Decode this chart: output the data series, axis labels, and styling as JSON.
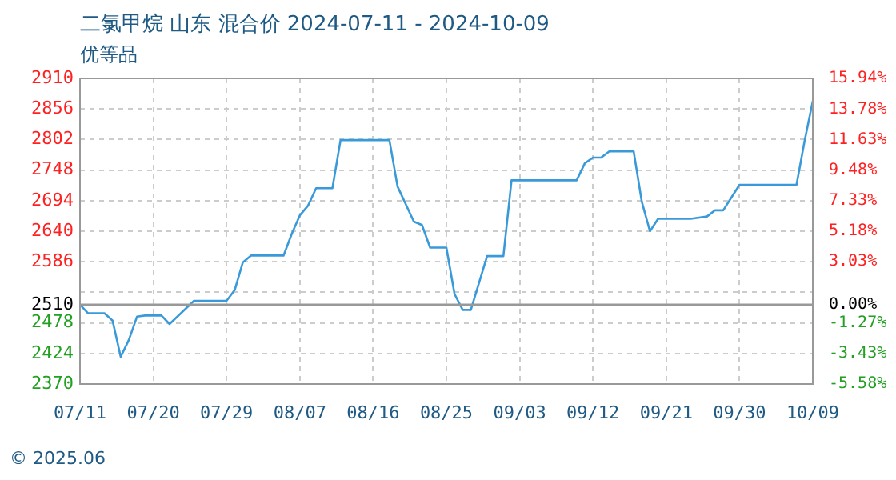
{
  "chart_data": {
    "type": "line",
    "title": "二氯甲烷 山东 混合价 2024-07-11 - 2024-10-09",
    "subtitle": "优等品",
    "annotations": [
      "© 2025.06"
    ],
    "x": [
      "2024-07-11",
      "2024-07-12",
      "2024-07-14",
      "2024-07-15",
      "2024-07-16",
      "2024-07-17",
      "2024-07-18",
      "2024-07-19",
      "2024-07-21",
      "2024-07-22",
      "2024-07-25",
      "2024-07-29",
      "2024-07-30",
      "2024-07-31",
      "2024-08-01",
      "2024-08-05",
      "2024-08-06",
      "2024-08-07",
      "2024-08-08",
      "2024-08-09",
      "2024-08-11",
      "2024-08-12",
      "2024-08-18",
      "2024-08-19",
      "2024-08-21",
      "2024-08-22",
      "2024-08-23",
      "2024-08-25",
      "2024-08-26",
      "2024-08-27",
      "2024-08-28",
      "2024-08-30",
      "2024-09-01",
      "2024-09-02",
      "2024-09-10",
      "2024-09-11",
      "2024-09-12",
      "2024-09-13",
      "2024-09-14",
      "2024-09-17",
      "2024-09-18",
      "2024-09-19",
      "2024-09-20",
      "2024-09-24",
      "2024-09-26",
      "2024-09-27",
      "2024-09-28",
      "2024-09-30",
      "2024-10-07",
      "2024-10-08",
      "2024-10-09"
    ],
    "series": [
      {
        "color": "#3a9ad9",
        "values": [
          2510,
          2495,
          2495,
          2482,
          2418,
          2448,
          2489,
          2491,
          2491,
          2476,
          2517,
          2517,
          2536,
          2585,
          2597,
          2597,
          2635,
          2668,
          2685,
          2716,
          2716,
          2801,
          2801,
          2719,
          2657,
          2651,
          2611,
          2611,
          2529,
          2501,
          2501,
          2596,
          2596,
          2730,
          2730,
          2760,
          2770,
          2770,
          2781,
          2781,
          2692,
          2640,
          2662,
          2662,
          2666,
          2677,
          2677,
          2722,
          2722,
          2800,
          2870
        ]
      }
    ],
    "xlim": [
      "2024-07-11",
      "2024-10-09"
    ],
    "xticks": [
      {
        "value": "2024-07-11",
        "label": "07/11"
      },
      {
        "value": "2024-07-20",
        "label": "07/20"
      },
      {
        "value": "2024-07-29",
        "label": "07/29"
      },
      {
        "value": "2024-08-07",
        "label": "08/07"
      },
      {
        "value": "2024-08-16",
        "label": "08/16"
      },
      {
        "value": "2024-08-25",
        "label": "08/25"
      },
      {
        "value": "2024-09-03",
        "label": "09/03"
      },
      {
        "value": "2024-09-12",
        "label": "09/12"
      },
      {
        "value": "2024-09-21",
        "label": "09/21"
      },
      {
        "value": "2024-09-30",
        "label": "09/30"
      },
      {
        "value": "2024-10-09",
        "label": "10/09"
      }
    ],
    "ylim": [
      2370,
      2910
    ],
    "yticks": [
      2370,
      2424,
      2478,
      2510,
      {
        "value": 2532,
        "label": null
      },
      2586,
      2640,
      2694,
      2748,
      2802,
      2856,
      2910
    ],
    "y2lim": [
      -5.58,
      15.94
    ],
    "y2ticks": [
      {
        "value": -5.58,
        "label": "-5.58%"
      },
      {
        "value": -3.43,
        "label": "-3.43%"
      },
      {
        "value": -1.27,
        "label": "-1.27%"
      },
      {
        "value": 0,
        "label": "0.00%"
      },
      {
        "value": 3.03,
        "label": "3.03%"
      },
      {
        "value": 5.18,
        "label": "5.18%"
      },
      {
        "value": 7.33,
        "label": "7.33%"
      },
      {
        "value": 9.48,
        "label": "9.48%"
      },
      {
        "value": 11.63,
        "label": "11.63%"
      },
      {
        "value": 13.78,
        "label": "13.78%"
      },
      {
        "value": 15.94,
        "label": "15.94%"
      }
    ],
    "ref_lines": [
      {
        "axis": "y",
        "value": 2510,
        "color": "#999999",
        "line_style": "solid"
      }
    ],
    "grid": true,
    "legend": false,
    "marker": "none",
    "line_style": "solid"
  }
}
